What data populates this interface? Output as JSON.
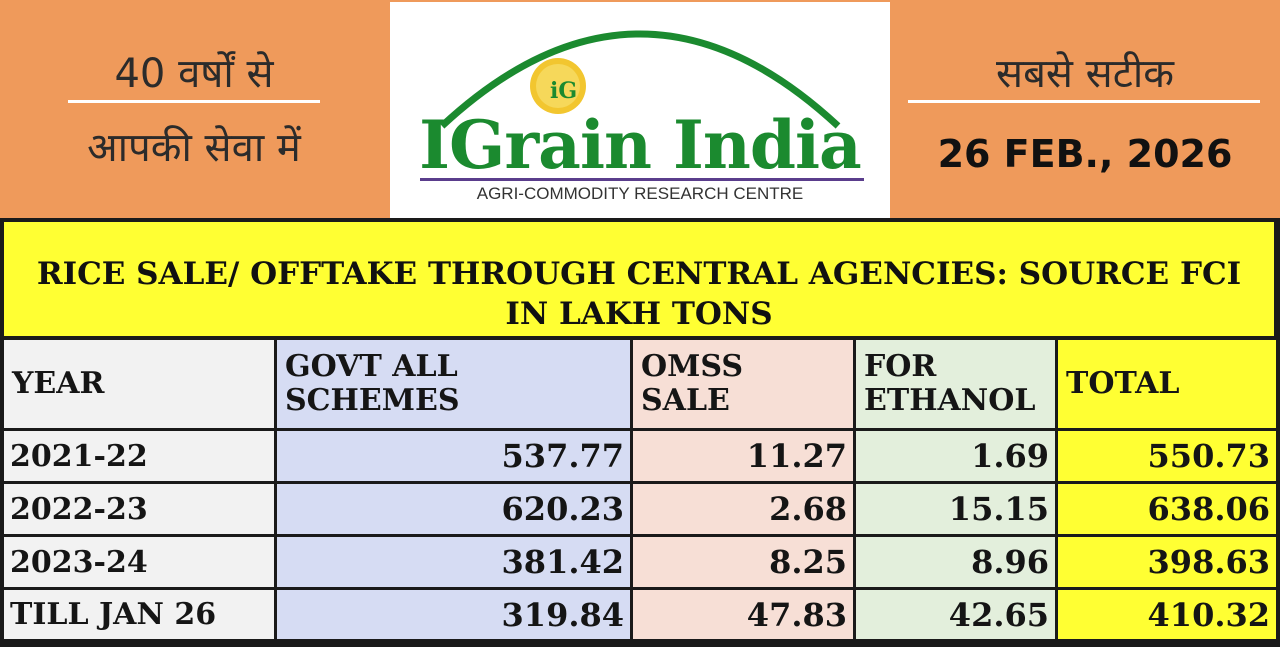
{
  "header": {
    "left_line1": "40 वर्षों से",
    "left_line2": "आपकी सेवा में",
    "logo_name": "IGrain India",
    "logo_tagline": "AGRI-COMMODITY RESEARCH CENTRE",
    "logo_mark": "iG",
    "right_tagline": "सबसे सटीक",
    "date": "26 FEB., 2026"
  },
  "table": {
    "title_line1": "RICE SALE/ OFFTAKE THROUGH CENTRAL AGENCIES: SOURCE FCI",
    "title_line2": "IN LAKH TONS",
    "columns": [
      {
        "line1": "YEAR",
        "line2": ""
      },
      {
        "line1": "GOVT ALL",
        "line2": "SCHEMES"
      },
      {
        "line1": "OMSS",
        "line2": "SALE"
      },
      {
        "line1": "FOR",
        "line2": "ETHANOL"
      },
      {
        "line1": "TOTAL",
        "line2": ""
      }
    ],
    "rows": [
      {
        "year": "2021-22",
        "govt": "537.77",
        "omss": "11.27",
        "ethanol": "1.69",
        "total": "550.73"
      },
      {
        "year": "2022-23",
        "govt": "620.23",
        "omss": "2.68",
        "ethanol": "15.15",
        "total": "638.06"
      },
      {
        "year": "2023-24",
        "govt": "381.42",
        "omss": "8.25",
        "ethanol": "8.96",
        "total": "398.63"
      },
      {
        "year": "TILL JAN 26",
        "govt": "319.84",
        "omss": "47.83",
        "ethanol": "42.65",
        "total": "410.32"
      }
    ]
  },
  "colors": {
    "header_bg": "#ef9a5b",
    "title_band": "#ffff33",
    "logo_green": "#1b8a2f",
    "logo_gold": "#f2c62f",
    "govt_col": "#d6dcf3",
    "omss_col": "#f7dfd6",
    "ethanol_col": "#e3efdc",
    "total_col": "#ffff33"
  }
}
